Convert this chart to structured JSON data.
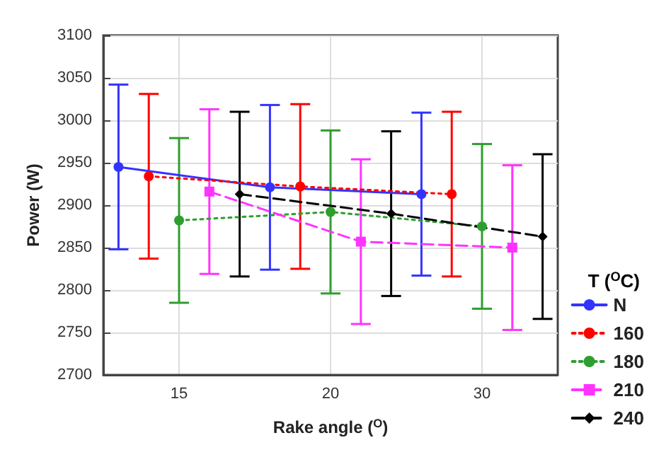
{
  "chart_data": {
    "type": "line",
    "xlabel": "Rake angle ($^{O}$)",
    "ylabel": "Power (W)",
    "legend_title": "T ($^{O}$C)",
    "categories": [
      null,
      null,
      "15",
      null,
      null,
      null,
      null,
      "20",
      null,
      null,
      null,
      null,
      "30",
      null,
      null
    ],
    "series": [
      {
        "name": "N",
        "color": "#3333ff",
        "marker": "circle",
        "line_style": "solid",
        "values": [
          2945,
          null,
          null,
          null,
          null,
          2921,
          null,
          null,
          null,
          null,
          2913,
          null,
          null,
          null,
          null
        ],
        "errors": [
          97,
          null,
          null,
          null,
          null,
          97,
          null,
          null,
          null,
          null,
          96,
          null,
          null,
          null,
          null
        ]
      },
      {
        "name": "160",
        "color": "#ff0000",
        "marker": "circle",
        "line_style": "dotted",
        "values": [
          null,
          2934,
          null,
          null,
          null,
          null,
          2922,
          null,
          null,
          null,
          null,
          2913,
          null,
          null,
          null
        ],
        "errors": [
          null,
          97,
          null,
          null,
          null,
          null,
          97,
          null,
          null,
          null,
          null,
          97,
          null,
          null,
          null
        ]
      },
      {
        "name": "180",
        "color": "#2e9e2e",
        "marker": "circle",
        "line_style": "dotted",
        "values": [
          null,
          null,
          2882,
          null,
          null,
          null,
          null,
          2892,
          null,
          null,
          null,
          null,
          2875,
          null,
          null
        ],
        "errors": [
          null,
          null,
          97,
          null,
          null,
          null,
          null,
          96,
          null,
          null,
          null,
          null,
          97,
          null,
          null
        ]
      },
      {
        "name": "210",
        "color": "#ff33ff",
        "marker": "square",
        "line_style": "dashed",
        "values": [
          null,
          null,
          null,
          2916,
          null,
          null,
          null,
          null,
          2857,
          null,
          null,
          null,
          null,
          2850,
          null
        ],
        "errors": [
          null,
          null,
          null,
          97,
          null,
          null,
          null,
          null,
          97,
          null,
          null,
          null,
          null,
          97,
          null
        ]
      },
      {
        "name": "240",
        "color": "#000000",
        "marker": "diamond",
        "line_style": "dashed",
        "values": [
          null,
          null,
          null,
          null,
          2913,
          null,
          null,
          null,
          null,
          2890,
          null,
          null,
          null,
          null,
          2863
        ],
        "errors": [
          null,
          null,
          null,
          null,
          97,
          null,
          null,
          null,
          null,
          97,
          null,
          null,
          null,
          null,
          97
        ]
      }
    ],
    "ylim": [
      2700,
      3100
    ],
    "yticks": [
      2700,
      2750,
      2800,
      2850,
      2900,
      2950,
      3000,
      3050,
      3100
    ],
    "grid": true,
    "legend": "bottom right"
  }
}
